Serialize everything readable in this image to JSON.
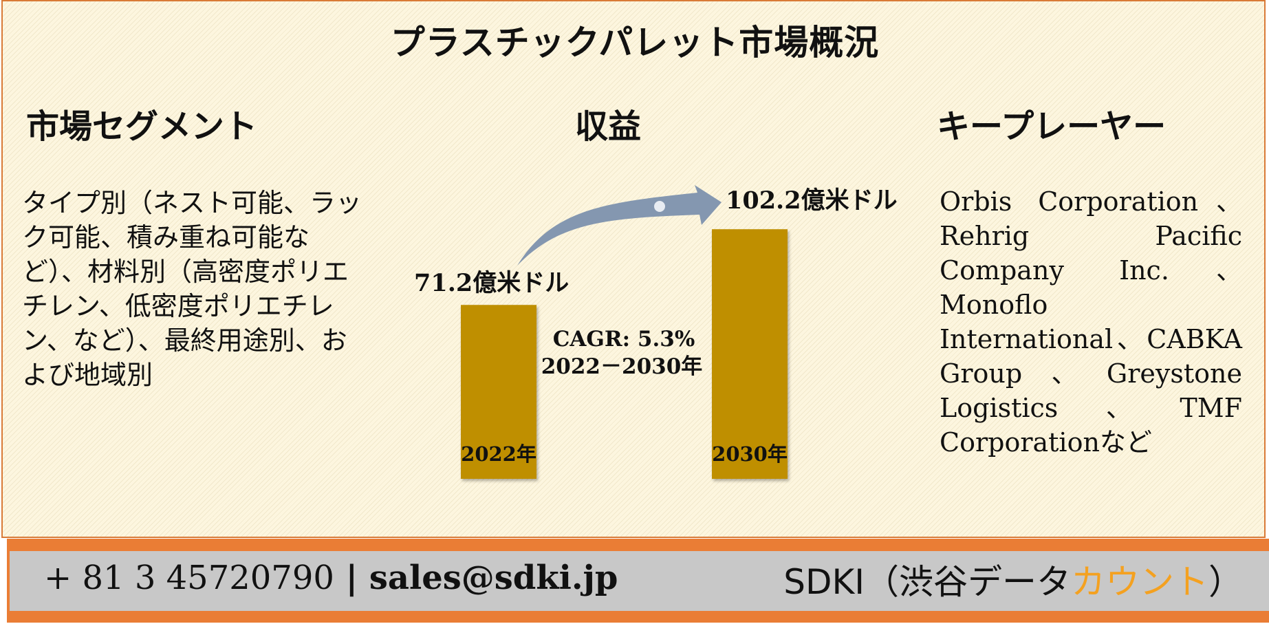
{
  "title": "プラスチックパレット市場概況",
  "segments": {
    "heading": "市場セグメント",
    "text": "タイプ別（ネスト可能、ラック可能、積み重ね可能など）、材料別（高密度ポリエチレン、低密度ポリエチレン、など）、最終用途別、および地域別"
  },
  "revenue": {
    "heading": "収益"
  },
  "key_players": {
    "heading": "キープレーヤー",
    "text": "Orbis Corporation、Rehrig Pacific Company Inc.、Monoflo International、CABKA Group、Greystone Logistics、TMF Corporationなど"
  },
  "chart_data": {
    "type": "bar",
    "categories": [
      "2022年",
      "2030年"
    ],
    "values": [
      71.2,
      102.2
    ],
    "value_labels": [
      "71.2億米ドル",
      "102.2億米ドル"
    ],
    "unit": "億米ドル",
    "cagr_label": "CAGR: 5.3%",
    "cagr_period": "2022－2030年",
    "bar_color": "#bf8f00",
    "arrow_color": "#8497b0"
  },
  "footer": {
    "phone": "+ 81 3 45720790",
    "separator": "|",
    "email": "sales@sdki.jp",
    "brand_prefix": "SDKI（渋谷データ",
    "brand_accent": "カウント",
    "brand_suffix": "）",
    "accent_color": "#f4a120",
    "band_color": "#ea7d35"
  }
}
